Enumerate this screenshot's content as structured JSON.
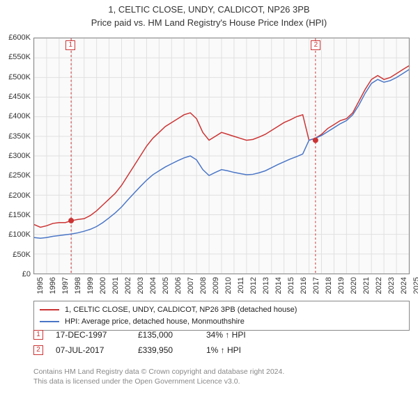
{
  "title_line1": "1, CELTIC CLOSE, UNDY, CALDICOT, NP26 3PB",
  "title_line2": "Price paid vs. HM Land Registry's House Price Index (HPI)",
  "chart": {
    "type": "line",
    "background_color": "#fafafa",
    "grid_color": "#e0e0e0",
    "ylim": [
      0,
      600000
    ],
    "ytick_step": 50000,
    "ytick_labels": [
      "£0",
      "£50K",
      "£100K",
      "£150K",
      "£200K",
      "£250K",
      "£300K",
      "£350K",
      "£400K",
      "£450K",
      "£500K",
      "£550K",
      "£600K"
    ],
    "xlim": [
      1995,
      2025
    ],
    "xtick_labels": [
      "1995",
      "1996",
      "1997",
      "1998",
      "1999",
      "2000",
      "2001",
      "2002",
      "2003",
      "2004",
      "2005",
      "2006",
      "2007",
      "2008",
      "2009",
      "2010",
      "2011",
      "2012",
      "2013",
      "2014",
      "2015",
      "2016",
      "2017",
      "2018",
      "2019",
      "2020",
      "2021",
      "2022",
      "2023",
      "2024",
      "2025"
    ],
    "series": [
      {
        "name": "price_paid",
        "color": "#cc3333",
        "legend": "1, CELTIC CLOSE, UNDY, CALDICOT, NP26 3PB (detached house)",
        "line_width": 1.5,
        "x": [
          1995,
          1995.5,
          1996,
          1996.5,
          1997,
          1997.5,
          1998,
          1998.5,
          1999,
          1999.5,
          2000,
          2000.5,
          2001,
          2001.5,
          2002,
          2002.5,
          2003,
          2003.5,
          2004,
          2004.5,
          2005,
          2005.5,
          2006,
          2006.5,
          2007,
          2007.5,
          2008,
          2008.5,
          2009,
          2009.5,
          2010,
          2010.5,
          2011,
          2011.5,
          2012,
          2012.5,
          2013,
          2013.5,
          2014,
          2014.5,
          2015,
          2015.5,
          2016,
          2016.5,
          2017,
          2017.5,
          2018,
          2018.5,
          2019,
          2019.5,
          2020,
          2020.5,
          2021,
          2021.5,
          2022,
          2022.5,
          2023,
          2023.5,
          2024,
          2024.5,
          2025
        ],
        "y": [
          125000,
          118000,
          122000,
          128000,
          130000,
          130000,
          135000,
          138000,
          140000,
          148000,
          160000,
          175000,
          190000,
          205000,
          225000,
          250000,
          275000,
          300000,
          325000,
          345000,
          360000,
          375000,
          385000,
          395000,
          405000,
          410000,
          395000,
          360000,
          340000,
          350000,
          360000,
          355000,
          350000,
          345000,
          340000,
          342000,
          348000,
          355000,
          365000,
          375000,
          385000,
          392000,
          400000,
          405000,
          340000,
          345000,
          355000,
          370000,
          380000,
          390000,
          395000,
          410000,
          440000,
          470000,
          495000,
          505000,
          495000,
          500000,
          510000,
          520000,
          530000
        ]
      },
      {
        "name": "hpi",
        "color": "#4a76c7",
        "legend": "HPI: Average price, detached house, Monmouthshire",
        "line_width": 1.5,
        "x": [
          1995,
          1995.5,
          1996,
          1996.5,
          1997,
          1997.5,
          1998,
          1998.5,
          1999,
          1999.5,
          2000,
          2000.5,
          2001,
          2001.5,
          2002,
          2002.5,
          2003,
          2003.5,
          2004,
          2004.5,
          2005,
          2005.5,
          2006,
          2006.5,
          2007,
          2007.5,
          2008,
          2008.5,
          2009,
          2009.5,
          2010,
          2010.5,
          2011,
          2011.5,
          2012,
          2012.5,
          2013,
          2013.5,
          2014,
          2014.5,
          2015,
          2015.5,
          2016,
          2016.5,
          2017,
          2017.5,
          2018,
          2018.5,
          2019,
          2019.5,
          2020,
          2020.5,
          2021,
          2021.5,
          2022,
          2022.5,
          2023,
          2023.5,
          2024,
          2024.5,
          2025
        ],
        "y": [
          92000,
          90000,
          92000,
          95000,
          97000,
          99000,
          101000,
          104000,
          108000,
          113000,
          120000,
          130000,
          142000,
          155000,
          170000,
          188000,
          205000,
          222000,
          238000,
          252000,
          262000,
          272000,
          280000,
          288000,
          295000,
          300000,
          290000,
          265000,
          250000,
          258000,
          265000,
          262000,
          258000,
          255000,
          252000,
          253000,
          257000,
          262000,
          270000,
          278000,
          285000,
          292000,
          298000,
          305000,
          340000,
          345000,
          352000,
          362000,
          372000,
          382000,
          390000,
          405000,
          430000,
          460000,
          485000,
          495000,
          488000,
          492000,
          500000,
          510000,
          520000
        ]
      }
    ],
    "markers": [
      {
        "label": "1",
        "x": 1997.96,
        "y": 135000,
        "color": "#cc3333"
      },
      {
        "label": "2",
        "x": 2017.52,
        "y": 339950,
        "color": "#cc3333"
      }
    ],
    "marker_box_color": "#cc3333"
  },
  "footnotes": [
    {
      "num": "1",
      "date": "17-DEC-1997",
      "price": "£135,000",
      "hpi": "34% ↑ HPI"
    },
    {
      "num": "2",
      "date": "07-JUL-2017",
      "price": "£339,950",
      "hpi": "1% ↑ HPI"
    }
  ],
  "attribution_line1": "Contains HM Land Registry data © Crown copyright and database right 2024.",
  "attribution_line2": "This data is licensed under the Open Government Licence v3.0."
}
